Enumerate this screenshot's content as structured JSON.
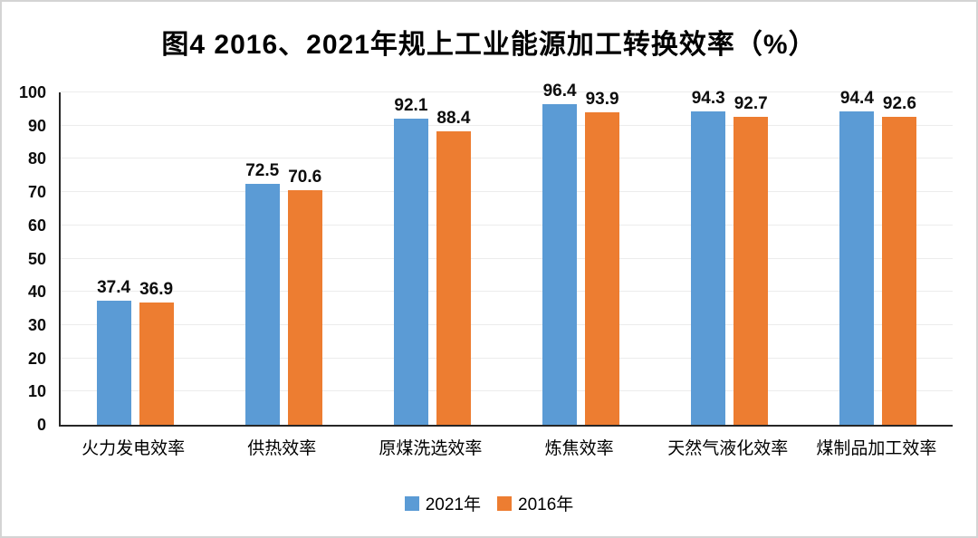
{
  "frame": {
    "border_color": "#d4d4d4",
    "background": "#ffffff"
  },
  "colors": {
    "series_2021": "#5B9BD5",
    "series_2016": "#ED7D31",
    "gridline": "#ececec",
    "axis_line": "#262626",
    "text": "#000000"
  },
  "chart_data": {
    "type": "bar",
    "title": "图4  2016、2021年规上工业能源加工转换效率（%）",
    "categories": [
      "火力发电效率",
      "供热效率",
      "原煤洗选效率",
      "炼焦效率",
      "天然气液化效率",
      "煤制品加工效率"
    ],
    "series": [
      {
        "name": "2021年",
        "color": "#5B9BD5",
        "values": [
          37.4,
          72.5,
          92.1,
          96.4,
          94.3,
          94.4
        ]
      },
      {
        "name": "2016年",
        "color": "#ED7D31",
        "values": [
          36.9,
          70.6,
          88.4,
          93.9,
          92.7,
          92.6
        ]
      }
    ],
    "xlabel": "",
    "ylabel": "",
    "ylim": [
      0,
      100
    ],
    "yticks": [
      0,
      10,
      20,
      30,
      40,
      50,
      60,
      70,
      80,
      90,
      100
    ],
    "grid": true,
    "value_labels": true,
    "value_label_decimals": 1,
    "legend_position": "bottom"
  }
}
